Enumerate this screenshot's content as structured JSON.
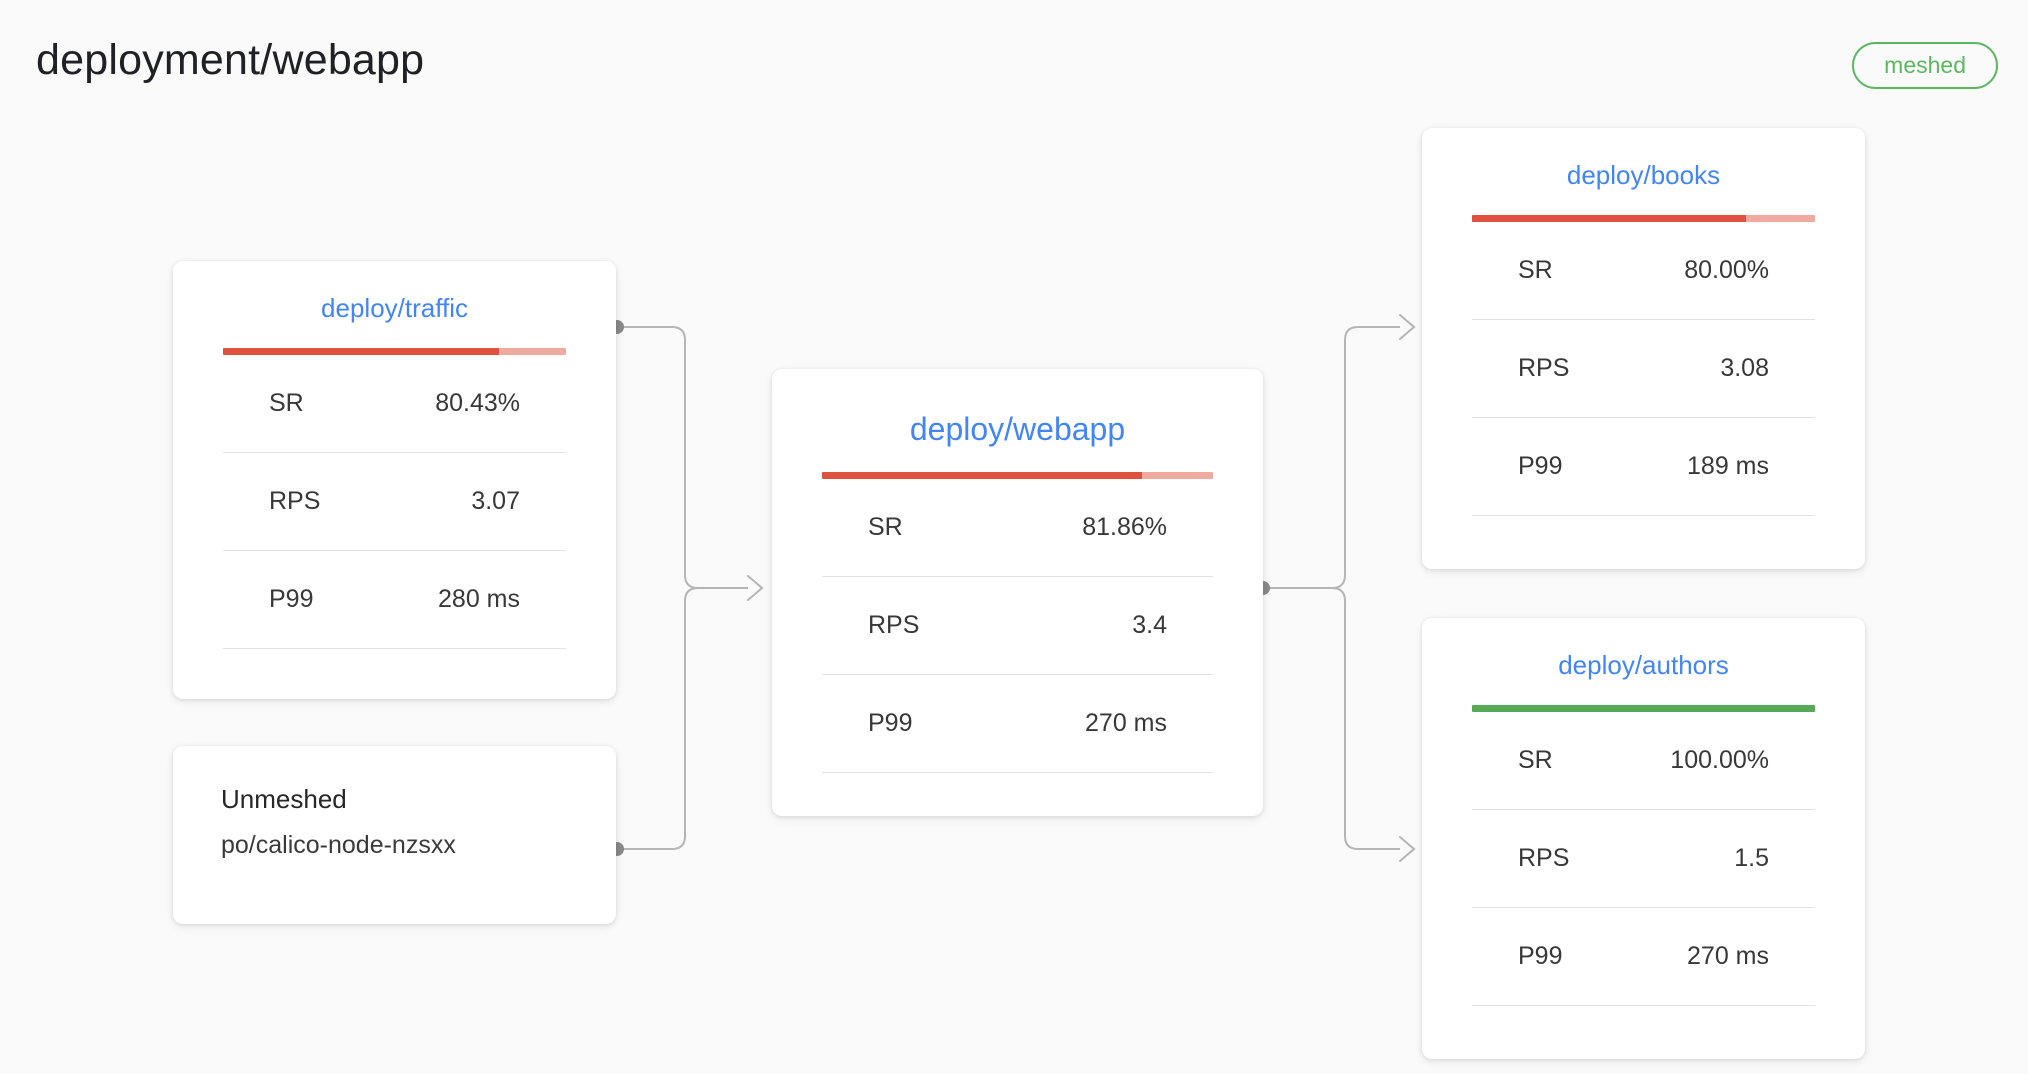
{
  "page": {
    "title": "deployment/webapp",
    "badge": "meshed"
  },
  "colors": {
    "page_bg": "#fafafa",
    "accent_blue": "#4285f4",
    "badge_green": "#5cb860",
    "edge_gray": "#b5b5b5",
    "bar_red": "#e0513f",
    "bar_red_track": "#efab9f",
    "bar_green": "#57a857"
  },
  "nodes": {
    "traffic": {
      "title": "deploy/traffic",
      "bar": {
        "percent": 80.43,
        "fill_color": "#e0513f",
        "track_color": "#efab9f"
      },
      "stats": [
        {
          "label": "SR",
          "value": "80.43%"
        },
        {
          "label": "RPS",
          "value": "3.07"
        },
        {
          "label": "P99",
          "value": "280 ms"
        }
      ]
    },
    "unmeshed": {
      "title": "Unmeshed",
      "subtitle": "po/calico-node-nzsxx"
    },
    "webapp": {
      "title": "deploy/webapp",
      "bar": {
        "percent": 81.86,
        "fill_color": "#e0513f",
        "track_color": "#efab9f"
      },
      "stats": [
        {
          "label": "SR",
          "value": "81.86%"
        },
        {
          "label": "RPS",
          "value": "3.4"
        },
        {
          "label": "P99",
          "value": "270 ms"
        }
      ]
    },
    "books": {
      "title": "deploy/books",
      "bar": {
        "percent": 80.0,
        "fill_color": "#e0513f",
        "track_color": "#efab9f"
      },
      "stats": [
        {
          "label": "SR",
          "value": "80.00%"
        },
        {
          "label": "RPS",
          "value": "3.08"
        },
        {
          "label": "P99",
          "value": "189 ms"
        }
      ]
    },
    "authors": {
      "title": "deploy/authors",
      "bar": {
        "percent": 100,
        "fill_color": "#57a857",
        "track_color": "#57a857"
      },
      "stats": [
        {
          "label": "SR",
          "value": "100.00%"
        },
        {
          "label": "RPS",
          "value": "1.5"
        },
        {
          "label": "P99",
          "value": "270 ms"
        }
      ]
    }
  }
}
